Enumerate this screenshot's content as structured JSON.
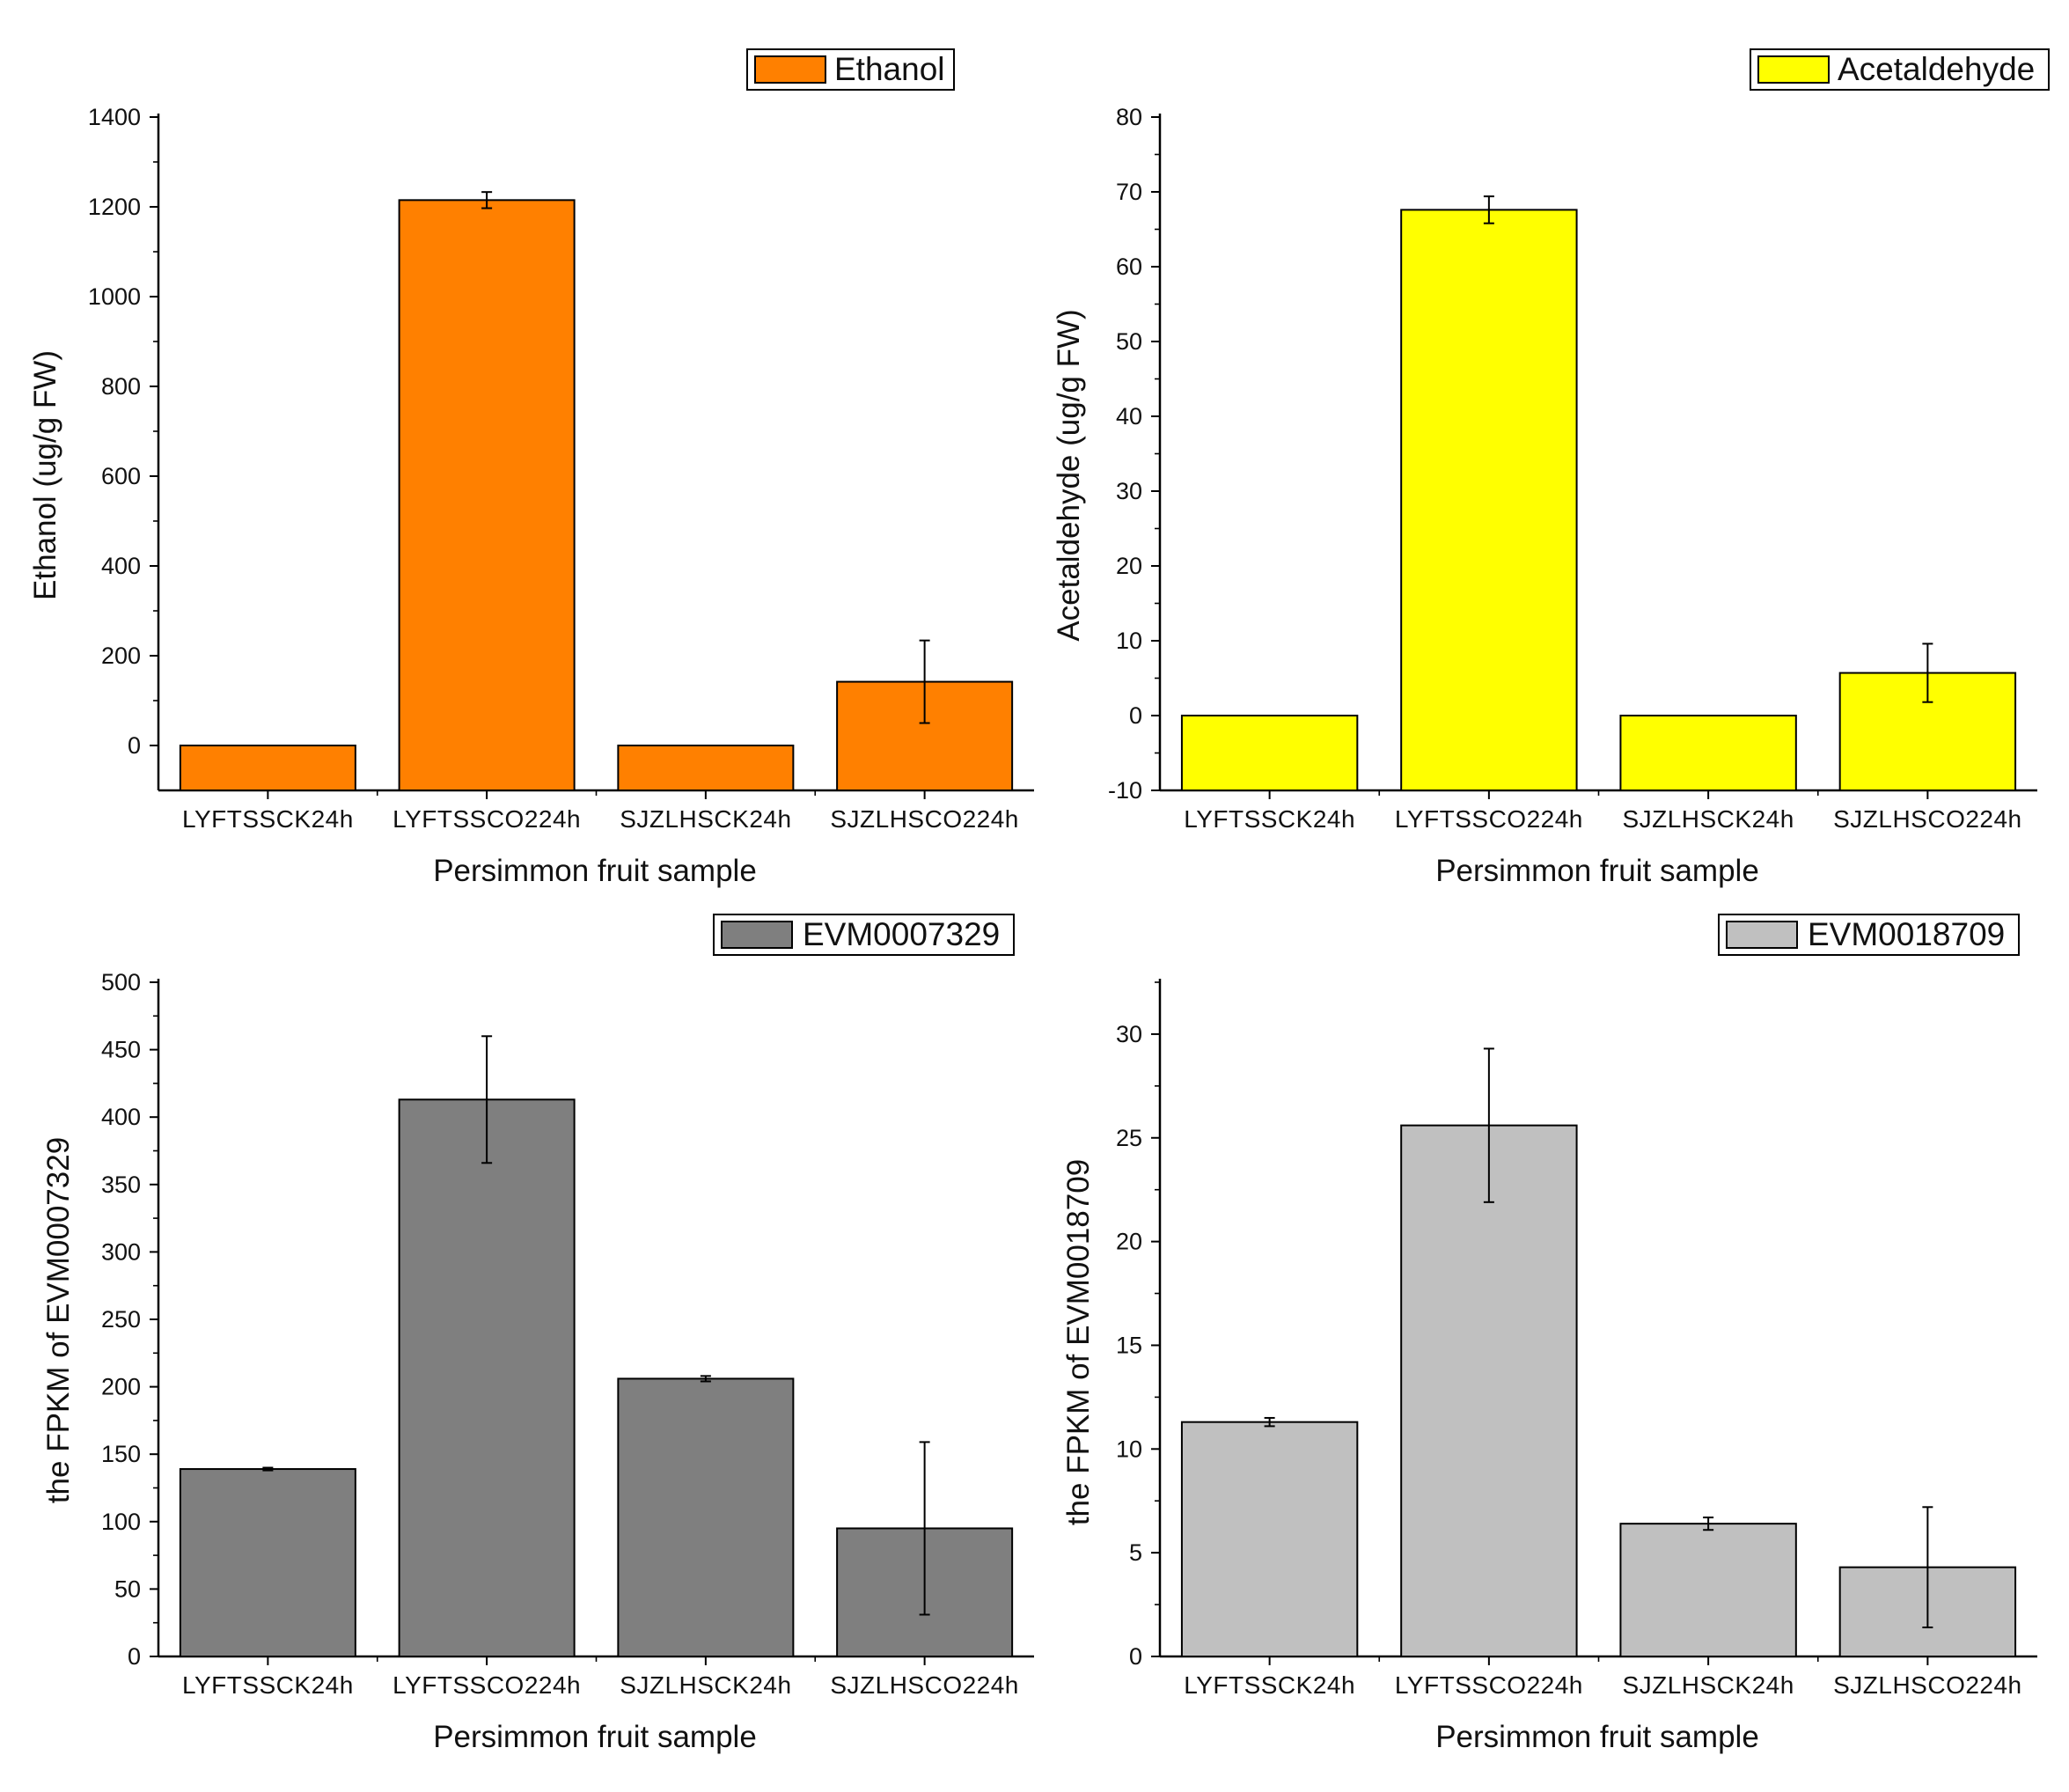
{
  "chart_data": [
    {
      "type": "bar",
      "title": "",
      "xlabel": "Persimmon fruit sample",
      "ylabel": "Ethanol (ug/g FW)",
      "categories": [
        "LYFTSSCK24h",
        "LYFTSSCO224h",
        "SJZLHSCK24h",
        "SJZLHSCO224h"
      ],
      "values": [
        0,
        1215,
        0,
        142
      ],
      "errors": [
        0,
        18,
        0,
        92
      ],
      "ylim": [
        -100,
        1400
      ],
      "yticks": [
        0,
        200,
        400,
        600,
        800,
        1000,
        1200,
        1400
      ],
      "bar_floor": -100,
      "legend": {
        "label": "Ethanol",
        "position": "top-right"
      },
      "color": "#ff8000"
    },
    {
      "type": "bar",
      "title": "",
      "xlabel": "Persimmon fruit sample",
      "ylabel": "Acetaldehyde (ug/g FW)",
      "categories": [
        "LYFTSSCK24h",
        "LYFTSSCO224h",
        "SJZLHSCK24h",
        "SJZLHSCO224h"
      ],
      "values": [
        0,
        67.6,
        0,
        5.7
      ],
      "errors": [
        0,
        1.8,
        0,
        3.9
      ],
      "ylim": [
        -10,
        80
      ],
      "yticks": [
        -10,
        0,
        10,
        20,
        30,
        40,
        50,
        60,
        70,
        80
      ],
      "bar_floor": -10,
      "legend": {
        "label": "Acetaldehyde",
        "position": "top-right"
      },
      "color": "#ffff00"
    },
    {
      "type": "bar",
      "title": "",
      "xlabel": "Persimmon fruit sample",
      "ylabel": "the FPKM of EVM0007329",
      "categories": [
        "LYFTSSCK24h",
        "LYFTSSCO224h",
        "SJZLHSCK24h",
        "SJZLHSCO224h"
      ],
      "values": [
        139,
        413,
        206,
        95
      ],
      "errors": [
        1,
        47,
        2,
        64
      ],
      "ylim": [
        0,
        500
      ],
      "yticks": [
        0,
        50,
        100,
        150,
        200,
        250,
        300,
        350,
        400,
        450,
        500
      ],
      "bar_floor": 0,
      "legend": {
        "label": "EVM0007329",
        "position": "top-right"
      },
      "color": "#7f7f7f"
    },
    {
      "type": "bar",
      "title": "",
      "xlabel": "Persimmon fruit sample",
      "ylabel": "the FPKM of EVM0018709",
      "categories": [
        "LYFTSSCK24h",
        "LYFTSSCO224h",
        "SJZLHSCK24h",
        "SJZLHSCO224h"
      ],
      "values": [
        11.3,
        25.6,
        6.4,
        4.3
      ],
      "errors": [
        0.2,
        3.7,
        0.3,
        2.9
      ],
      "ylim": [
        0,
        32.5
      ],
      "yticks": [
        0,
        5,
        10,
        15,
        20,
        25,
        30
      ],
      "bar_floor": 0,
      "legend": {
        "label": "EVM0018709",
        "position": "top-right"
      },
      "color": "#c0c0c0"
    }
  ]
}
